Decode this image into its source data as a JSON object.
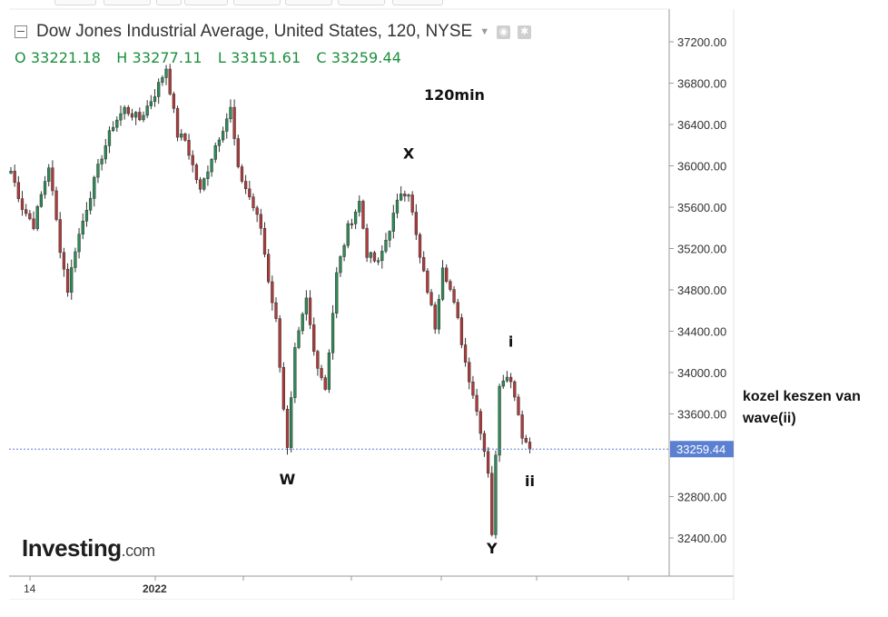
{
  "chart_header": {
    "title": "Dow Jones Industrial Average, United States, 120, NYSE",
    "ohlc": {
      "open": "O 33221.18",
      "high": "H 33277.11",
      "low": "L 33151.61",
      "close": "C 33259.44"
    }
  },
  "timeframe_label": "120min",
  "logo": {
    "name": "Investing",
    "suffix": ".com"
  },
  "side_note": {
    "line1": "kozel keszen van",
    "line2": "wave(ii)"
  },
  "chart_data": {
    "type": "candlestick",
    "ylim": [
      32000,
      37450
    ],
    "y_ticks": [
      "37200.00",
      "36800.00",
      "36400.00",
      "36000.00",
      "35600.00",
      "35200.00",
      "34800.00",
      "34400.00",
      "34000.00",
      "33600.00",
      "32800.00",
      "32400.00"
    ],
    "y_tick_values": [
      37200,
      36800,
      36400,
      36000,
      35600,
      35200,
      34800,
      34400,
      34000,
      33600,
      32800,
      32400
    ],
    "x_labels": [
      "14",
      "2022"
    ],
    "last_price": {
      "value": 33259.44,
      "label": "33259.44"
    },
    "colors": {
      "up": "#2e8b57",
      "down": "#b03a3a",
      "price_line": "#5b7fd1"
    },
    "annotations": [
      {
        "label": "X",
        "x": 105,
        "y": 36070
      },
      {
        "label": "W",
        "x": 73,
        "y": 32920
      },
      {
        "label": "i",
        "x": 132,
        "y": 34250
      },
      {
        "label": "Y",
        "x": 127,
        "y": 32250
      },
      {
        "label": "ii",
        "x": 137,
        "y": 32900
      }
    ],
    "waypoints": [
      [
        0,
        35900,
        35950
      ],
      [
        3,
        35700,
        35600
      ],
      [
        6,
        35500,
        35430
      ],
      [
        10,
        35850,
        36000
      ],
      [
        13,
        35300,
        35200
      ],
      [
        15,
        34750,
        34800
      ],
      [
        17,
        35100,
        35200
      ],
      [
        20,
        35450,
        35600
      ],
      [
        24,
        35950,
        36100
      ],
      [
        27,
        36250,
        36400
      ],
      [
        30,
        36500,
        36550
      ],
      [
        34,
        36400,
        36450
      ],
      [
        38,
        36650,
        36700
      ],
      [
        41,
        36950,
        36950
      ],
      [
        44,
        36400,
        36300
      ],
      [
        46,
        36300,
        36250
      ],
      [
        50,
        35700,
        35750
      ],
      [
        54,
        36150,
        36200
      ],
      [
        58,
        36450,
        36550
      ],
      [
        60,
        36100,
        35950
      ],
      [
        63,
        35800,
        35700
      ],
      [
        66,
        35450,
        35400
      ],
      [
        68,
        35200,
        34900
      ],
      [
        70,
        34700,
        34500
      ],
      [
        73,
        33400,
        33250
      ],
      [
        75,
        33900,
        34200
      ],
      [
        78,
        34600,
        34700
      ],
      [
        80,
        34400,
        34200
      ],
      [
        83,
        34000,
        33850
      ],
      [
        86,
        34700,
        34950
      ],
      [
        89,
        35300,
        35400
      ],
      [
        92,
        35550,
        35650
      ],
      [
        94,
        35200,
        35150
      ],
      [
        97,
        35150,
        35050
      ],
      [
        100,
        35250,
        35400
      ],
      [
        103,
        35700,
        35750
      ],
      [
        105,
        35800,
        35750
      ],
      [
        108,
        35250,
        35100
      ],
      [
        110,
        34900,
        34800
      ],
      [
        112,
        34400,
        34450
      ],
      [
        114,
        34900,
        35050
      ],
      [
        116,
        34900,
        34800
      ],
      [
        118,
        34550,
        34500
      ],
      [
        120,
        34250,
        34100
      ],
      [
        122,
        33900,
        33800
      ],
      [
        124,
        33500,
        33450
      ],
      [
        126,
        33300,
        33050
      ],
      [
        127,
        32400,
        32450
      ],
      [
        129,
        33200,
        33900
      ],
      [
        131,
        33950,
        34000
      ],
      [
        133,
        33900,
        33800
      ],
      [
        135,
        33600,
        33400
      ],
      [
        137,
        33221,
        33259
      ]
    ]
  }
}
